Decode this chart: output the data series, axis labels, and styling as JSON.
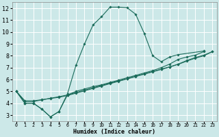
{
  "xlabel": "Humidex (Indice chaleur)",
  "bg_color": "#cce8e8",
  "grid_color": "#ffffff",
  "line_color": "#1a6b5a",
  "xlim": [
    -0.5,
    23.5
  ],
  "ylim": [
    2.5,
    12.5
  ],
  "xticks": [
    0,
    1,
    2,
    3,
    4,
    5,
    6,
    7,
    8,
    9,
    10,
    11,
    12,
    13,
    14,
    15,
    16,
    17,
    18,
    19,
    20,
    21,
    22,
    23
  ],
  "yticks": [
    3,
    4,
    5,
    6,
    7,
    8,
    9,
    10,
    11,
    12
  ],
  "x_main": [
    0,
    1,
    2,
    3,
    4,
    5,
    6,
    7,
    8,
    9,
    10,
    11,
    12,
    13,
    14,
    15,
    16,
    17,
    18,
    19,
    22
  ],
  "y_main": [
    5.0,
    4.0,
    4.0,
    3.5,
    2.85,
    3.3,
    4.8,
    7.2,
    9.0,
    10.6,
    11.3,
    12.1,
    12.1,
    12.05,
    11.5,
    9.9,
    8.0,
    7.5,
    7.9,
    8.1,
    8.4
  ],
  "x_line1": [
    0,
    1,
    2,
    3,
    4,
    5,
    6,
    7,
    8,
    9,
    10,
    11,
    12,
    13,
    14,
    15,
    16,
    17,
    18,
    19,
    20,
    21,
    22
  ],
  "y_line1": [
    5.0,
    4.0,
    4.0,
    3.5,
    2.85,
    3.3,
    4.7,
    5.0,
    5.2,
    5.4,
    5.55,
    5.75,
    5.95,
    6.15,
    6.35,
    6.55,
    6.75,
    7.0,
    7.3,
    7.7,
    7.9,
    8.05,
    8.35
  ],
  "x_line2": [
    0,
    1,
    2,
    3,
    4,
    5,
    6,
    7,
    8,
    9,
    10,
    11,
    12,
    13,
    14,
    15,
    16,
    17,
    18,
    19,
    20,
    21,
    22,
    23
  ],
  "y_line2": [
    5.0,
    4.2,
    4.2,
    4.3,
    4.4,
    4.5,
    4.65,
    4.85,
    5.05,
    5.25,
    5.45,
    5.65,
    5.85,
    6.05,
    6.25,
    6.45,
    6.65,
    6.85,
    7.05,
    7.3,
    7.6,
    7.85,
    8.05,
    8.35
  ],
  "x_line3": [
    0,
    1,
    2,
    3,
    4,
    5,
    6,
    7,
    8,
    9,
    10,
    11,
    12,
    13,
    14,
    15,
    16,
    17,
    18,
    19,
    20,
    21,
    22,
    23
  ],
  "y_line3": [
    5.0,
    4.15,
    4.15,
    4.28,
    4.42,
    4.55,
    4.7,
    4.9,
    5.1,
    5.3,
    5.5,
    5.7,
    5.88,
    6.07,
    6.27,
    6.47,
    6.67,
    6.87,
    7.07,
    7.28,
    7.55,
    7.8,
    8.0,
    8.35
  ],
  "xlabel_fontsize": 6.0,
  "ytick_fontsize": 6.0,
  "xtick_fontsize": 4.8,
  "marker_size": 1.8,
  "linewidth": 0.8
}
